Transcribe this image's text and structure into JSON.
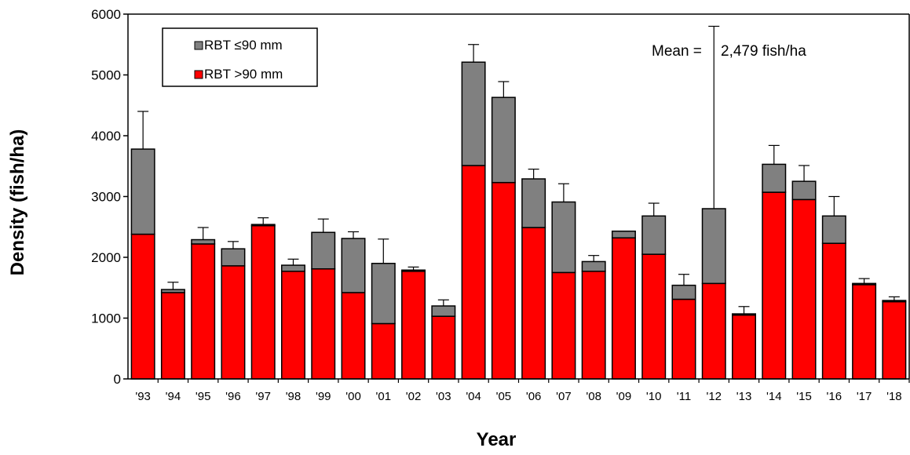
{
  "chart_data": {
    "type": "bar",
    "stacked": true,
    "xlabel": "Year",
    "ylabel": "Density (fish/ha)",
    "ylim": [
      0,
      6000
    ],
    "yticks": [
      0,
      1000,
      2000,
      3000,
      4000,
      5000,
      6000
    ],
    "categories": [
      "'93",
      "'94",
      "'95",
      "'96",
      "'97",
      "'98",
      "'99",
      "'00",
      "'01",
      "'02",
      "'03",
      "'04",
      "'05",
      "'06",
      "'07",
      "'08",
      "'09",
      "'10",
      "'11",
      "'12",
      "'13",
      "'14",
      "'15",
      "'16",
      "'17",
      "'18"
    ],
    "series": [
      {
        "name": "RBT >90 mm",
        "color": "#ff0000",
        "values": [
          2380,
          1420,
          2220,
          1860,
          2520,
          1770,
          1810,
          1420,
          910,
          1770,
          1030,
          3510,
          3230,
          2490,
          1750,
          1770,
          2320,
          2050,
          1310,
          1570,
          1050,
          3070,
          2950,
          2230,
          1550,
          1270
        ]
      },
      {
        "name": "RBT ≤90 mm",
        "color": "#808080",
        "values": [
          1400,
          50,
          70,
          280,
          20,
          100,
          600,
          890,
          990,
          20,
          170,
          1700,
          1400,
          800,
          1160,
          160,
          110,
          630,
          230,
          1230,
          20,
          460,
          300,
          450,
          20,
          20
        ]
      }
    ],
    "error_upper": [
      4400,
      1590,
      2490,
      2260,
      2650,
      1970,
      2630,
      2420,
      2300,
      1840,
      1300,
      5500,
      4890,
      3450,
      3210,
      2030,
      2430,
      2890,
      1720,
      5800,
      1190,
      3840,
      3510,
      3000,
      1650,
      1350
    ],
    "legend": {
      "position": "top-left",
      "order": [
        "RBT ≤90 mm",
        "RBT >90 mm"
      ]
    },
    "annotation": {
      "label": "Mean =",
      "value": "2,479 fish/ha"
    },
    "grid": false
  }
}
